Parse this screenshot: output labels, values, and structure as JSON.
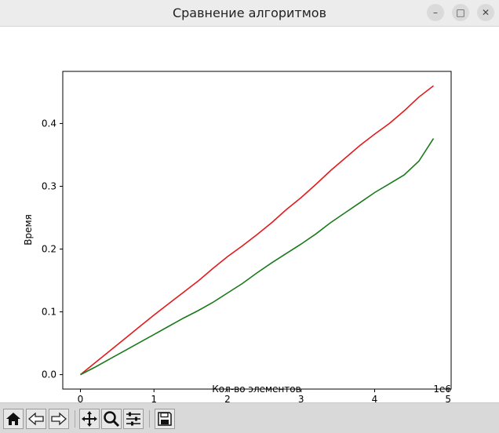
{
  "window": {
    "title": "Сравнение алгоритмов",
    "minimize_glyph": "–",
    "maximize_glyph": "□",
    "close_glyph": "✕"
  },
  "toolbar": {
    "buttons": [
      {
        "name": "home-icon"
      },
      {
        "name": "back-icon"
      },
      {
        "name": "forward-icon"
      },
      {
        "name": "pan-icon"
      },
      {
        "name": "zoom-icon"
      },
      {
        "name": "configure-subplots-icon"
      },
      {
        "name": "save-icon"
      }
    ]
  },
  "chart_data": {
    "type": "line",
    "title": "",
    "xlabel": "Кол-во элементов",
    "ylabel": "Время",
    "x_offset_text": "1e6",
    "xlim": [
      -0.24,
      5.04
    ],
    "ylim": [
      -0.023,
      0.483
    ],
    "x_ticks": [
      0,
      1,
      2,
      3,
      4,
      5
    ],
    "y_ticks": [
      0.0,
      0.1,
      0.2,
      0.3,
      0.4
    ],
    "y_tick_labels": [
      "0.0",
      "0.1",
      "0.2",
      "0.3",
      "0.4"
    ],
    "grid": false,
    "x": [
      0,
      0.2,
      0.4,
      0.6,
      0.8,
      1.0,
      1.2,
      1.4,
      1.6,
      1.8,
      2.0,
      2.2,
      2.4,
      2.6,
      2.8,
      3.0,
      3.2,
      3.4,
      3.6,
      3.8,
      4.0,
      4.2,
      4.4,
      4.6,
      4.8
    ],
    "series": [
      {
        "color": "#e41a1c",
        "values": [
          0.0,
          0.019,
          0.038,
          0.057,
          0.076,
          0.095,
          0.113,
          0.131,
          0.149,
          0.169,
          0.188,
          0.205,
          0.223,
          0.242,
          0.263,
          0.282,
          0.303,
          0.325,
          0.345,
          0.365,
          0.383,
          0.4,
          0.42,
          0.442,
          0.46
        ]
      },
      {
        "color": "#1a7a1a",
        "values": [
          0.0,
          0.012,
          0.025,
          0.038,
          0.051,
          0.064,
          0.077,
          0.09,
          0.102,
          0.115,
          0.13,
          0.145,
          0.162,
          0.178,
          0.193,
          0.208,
          0.224,
          0.242,
          0.258,
          0.274,
          0.29,
          0.304,
          0.318,
          0.34,
          0.376
        ]
      }
    ]
  }
}
